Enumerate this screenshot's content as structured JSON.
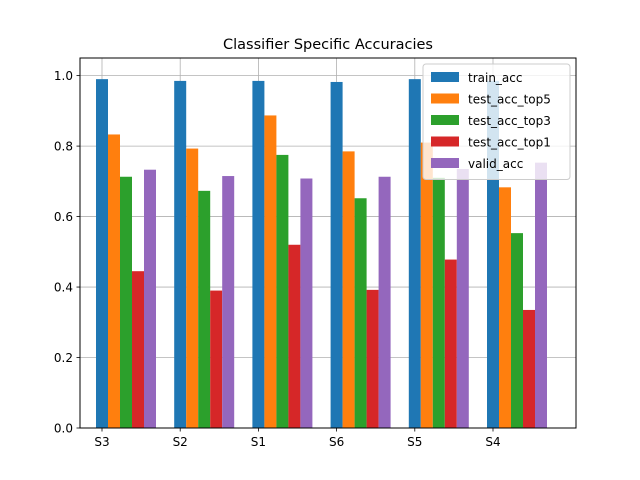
{
  "chart_data": {
    "type": "bar",
    "title": "Classifier Specific Accuracies",
    "xlabel": "",
    "ylabel": "",
    "categories": [
      "S3",
      "S2",
      "S1",
      "S6",
      "S5",
      "S4"
    ],
    "ylim": [
      0,
      1.05
    ],
    "yticks": [
      "0.0",
      "0.2",
      "0.4",
      "0.6",
      "0.8",
      "1.0"
    ],
    "grid": true,
    "legend_position": "top-right",
    "series": [
      {
        "name": "train_acc",
        "color": "#1f77b4",
        "values": [
          0.99,
          0.985,
          0.985,
          0.982,
          0.99,
          0.985
        ]
      },
      {
        "name": "test_acc_top5",
        "color": "#ff7f0e",
        "values": [
          0.833,
          0.793,
          0.887,
          0.785,
          0.81,
          0.683
        ]
      },
      {
        "name": "test_acc_top3",
        "color": "#2ca02c",
        "values": [
          0.713,
          0.673,
          0.775,
          0.652,
          0.71,
          0.553
        ]
      },
      {
        "name": "test_acc_top1",
        "color": "#d62728",
        "values": [
          0.445,
          0.39,
          0.52,
          0.392,
          0.478,
          0.335
        ]
      },
      {
        "name": "valid_acc",
        "color": "#9467bd",
        "values": [
          0.733,
          0.715,
          0.708,
          0.713,
          0.735,
          0.753
        ]
      }
    ]
  }
}
